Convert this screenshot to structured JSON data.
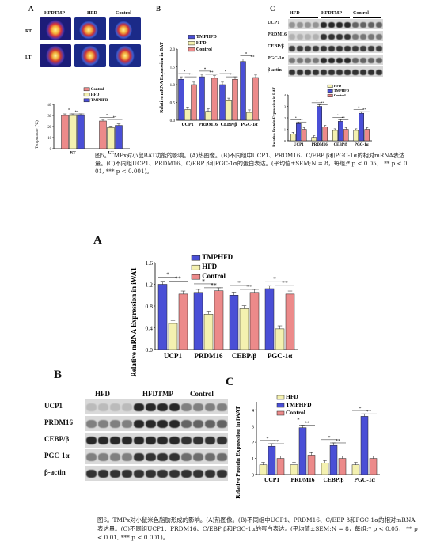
{
  "fig5": {
    "panelA": {
      "label": "A",
      "col_labels": [
        "HFDTMP",
        "HFD",
        "Control"
      ],
      "row_labels": [
        "RT",
        "LT"
      ]
    },
    "panelA_chart": {
      "legend": [
        "Control",
        "HFD",
        "TMPHFD"
      ],
      "ylabel": "Temperature (℃)",
      "categories": [
        "RT",
        "LT"
      ],
      "yticks": [
        "0",
        "10",
        "20",
        "30",
        "40"
      ],
      "sig": [
        "***",
        "**"
      ]
    },
    "panelB": {
      "label": "B",
      "legend": [
        "TMPHFD",
        "HFD",
        "Control"
      ],
      "ylabel": "Relative mRNA Expression in BAT",
      "categories": [
        "UCP1",
        "PRDM16",
        "CEBP/β",
        "PGC-1α"
      ],
      "yticks": [
        "0.0",
        "0.5",
        "1.0",
        "1.5",
        "2.0"
      ]
    },
    "panelC": {
      "label": "C",
      "blot_groups": [
        "HFD",
        "HFDTMP",
        "Control"
      ],
      "blot_rows": [
        "UCP1",
        "PRDM16",
        "CEBP/β",
        "PGC-1α",
        "β-actin"
      ],
      "legend": [
        "HFD",
        "TMPHFD",
        "Control"
      ],
      "ylabel": "Relative Protein Expression in BAT",
      "categories": [
        "UCP1",
        "PRDM16",
        "CEBP/β",
        "PGC-1α"
      ]
    },
    "caption_line1": "图5。TMPx对小鼠BAT功能的影响。(A)热图像。(B)不同组中UCP1、PRDM16、C/EBP β和PGC-1α的相对mRNA表达",
    "caption_line2": "量。(C)不同组UCP1、PRDM16、C/EBP β和PGC-1α的蛋白表达。(平均值±SEM;N = 8，每组;* p < 0.05， ** p < 0.",
    "caption_line3": "01, *** p < 0.001)。"
  },
  "fig6": {
    "panelA": {
      "label": "A",
      "legend": [
        "TMPHFD",
        "HFD",
        "Control"
      ],
      "ylabel": "Relative mRNA Expression in iWAT",
      "categories": [
        "UCP1",
        "PRDM16",
        "CEBP/β",
        "PGC-1α"
      ]
    },
    "panelB": {
      "label": "B",
      "blot_groups": [
        "HFD",
        "HFDTMP",
        "Control"
      ],
      "blot_rows": [
        "UCP1",
        "PRDM16",
        "CEBP/β",
        "PGC-1α",
        "β-actin"
      ]
    },
    "panelC": {
      "label": "C",
      "legend": [
        "HFD",
        "TMPHFD",
        "Control"
      ],
      "ylabel": "Relative Protein Expression in iWAT",
      "categories": [
        "UCP1",
        "PRDM16",
        "CEBP/β",
        "PGC-1α"
      ]
    },
    "caption_line1": "图6。TMPx对小鼠米色脂肪形成的影响。(A)热图像。(B)不同组中UCP1、PRDM16、C/EBP β和PGC-1α的相对mRNA",
    "caption_line2": "表达量。(C)不同组UCP1、PRDM16、C/EBP β和PGC-1α的蛋白表达。(平均值±SEM;N = 8，每组;* p < 0.05， ** p",
    "caption_line3": "< 0.01, *** p < 0.001)。"
  },
  "colors": {
    "blue": "#4a4fd6",
    "yellow": "#f4f1b0",
    "red": "#ec8a8a",
    "blue_stroke": "#1c1c7a",
    "dark": "#111111"
  },
  "chart_data": [
    {
      "type": "bar",
      "id": "fig5A-temp",
      "categories": [
        "RT",
        "LT"
      ],
      "series": [
        {
          "name": "Control",
          "values": [
            30,
            25
          ]
        },
        {
          "name": "HFD",
          "values": [
            30,
            19
          ]
        },
        {
          "name": "TMPHFD",
          "values": [
            30,
            21
          ]
        }
      ],
      "ylabel": "Temperature (℃)",
      "ylim": [
        0,
        40
      ]
    },
    {
      "type": "bar",
      "id": "fig5B-mrna-bat",
      "categories": [
        "UCP1",
        "PRDM16",
        "CEBP/β",
        "PGC-1α"
      ],
      "series": [
        {
          "name": "TMPHFD",
          "values": [
            1.15,
            1.22,
            1.0,
            1.65
          ]
        },
        {
          "name": "HFD",
          "values": [
            0.3,
            0.25,
            0.55,
            0.22
          ]
        },
        {
          "name": "Control",
          "values": [
            1.0,
            1.18,
            1.15,
            1.2
          ]
        }
      ],
      "ylabel": "Relative mRNA Expression in BAT",
      "ylim": [
        0,
        2.0
      ]
    },
    {
      "type": "bar",
      "id": "fig5C-protein-bat",
      "categories": [
        "UCP1",
        "PRDM16",
        "CEBP/β",
        "PGC-1α"
      ],
      "series": [
        {
          "name": "HFD",
          "values": [
            0.6,
            0.3,
            0.9,
            0.9
          ]
        },
        {
          "name": "TMPHFD",
          "values": [
            1.5,
            3.0,
            1.7,
            2.4
          ]
        },
        {
          "name": "Control",
          "values": [
            1.0,
            1.2,
            1.0,
            1.0
          ]
        }
      ],
      "ylabel": "Relative Protein Expression in BAT",
      "ylim": [
        0,
        4
      ]
    },
    {
      "type": "bar",
      "id": "fig6A-mrna-iwat",
      "categories": [
        "UCP1",
        "PRDM16",
        "CEBP/β",
        "PGC-1α"
      ],
      "series": [
        {
          "name": "TMPHFD",
          "values": [
            1.2,
            1.05,
            1.0,
            1.12
          ]
        },
        {
          "name": "HFD",
          "values": [
            0.48,
            0.65,
            0.75,
            0.38
          ]
        },
        {
          "name": "Control",
          "values": [
            1.02,
            1.08,
            1.05,
            1.02
          ]
        }
      ],
      "ylabel": "Relative mRNA Expression in iWAT",
      "ylim": [
        0,
        1.6
      ]
    },
    {
      "type": "bar",
      "id": "fig6C-protein-iwat",
      "categories": [
        "UCP1",
        "PRDM16",
        "CEBP/β",
        "PGC-1α"
      ],
      "series": [
        {
          "name": "HFD",
          "values": [
            0.6,
            0.6,
            0.7,
            0.6
          ]
        },
        {
          "name": "TMPHFD",
          "values": [
            1.75,
            2.9,
            1.8,
            3.6
          ]
        },
        {
          "name": "Control",
          "values": [
            1.0,
            1.2,
            1.0,
            1.0
          ]
        }
      ],
      "ylabel": "Relative Protein Expression in iWAT",
      "ylim": [
        0,
        4.5
      ]
    }
  ]
}
